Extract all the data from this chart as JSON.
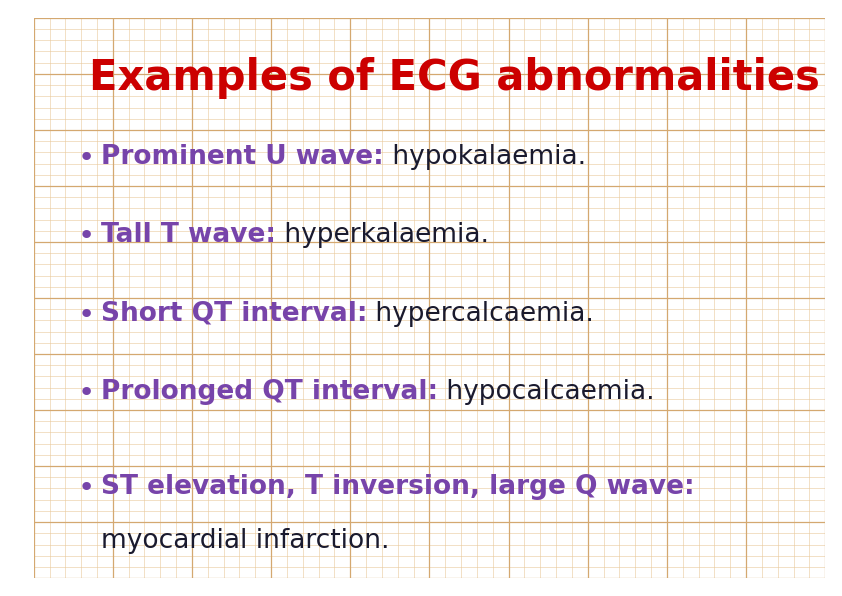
{
  "title": "Examples of ECG abnormalities",
  "title_color": "#cc0000",
  "title_fontsize": 30,
  "title_fontweight": "bold",
  "background_color": "#f5ead0",
  "outer_bg": "#ffffff",
  "grid_minor_color": "#e8c89a",
  "grid_major_color": "#d4a870",
  "bullet_color": "#7744aa",
  "bullet_char": "•",
  "items": [
    {
      "bold_part": "Prominent U wave:",
      "normal_part": " hypokalaemia.",
      "bold_color": "#7744aa",
      "normal_color": "#1a1a2e"
    },
    {
      "bold_part": "Tall T wave:",
      "normal_part": " hyperkalaemia.",
      "bold_color": "#7744aa",
      "normal_color": "#1a1a2e"
    },
    {
      "bold_part": "Short QT interval:",
      "normal_part": " hypercalcaemia.",
      "bold_color": "#7744aa",
      "normal_color": "#1a1a2e"
    },
    {
      "bold_part": "Prolonged QT interval:",
      "normal_part": " hypocalcaemia.",
      "bold_color": "#7744aa",
      "normal_color": "#1a1a2e"
    },
    {
      "bold_part": "ST elevation, T inversion, large Q wave:",
      "normal_part": "myocardial infarction.",
      "bold_color": "#7744aa",
      "normal_color": "#1a1a2e",
      "two_lines": true
    }
  ],
  "item_fontsize": 19,
  "fig_width": 8.42,
  "fig_height": 5.96,
  "dpi": 100
}
